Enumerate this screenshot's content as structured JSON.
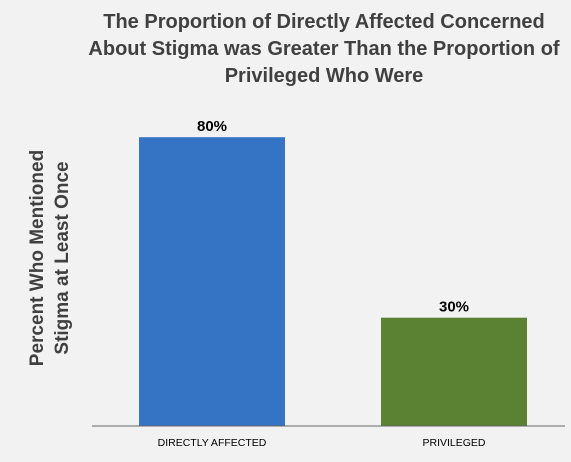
{
  "chart_data": {
    "type": "bar",
    "title_lines": [
      "The Proportion of Directly Affected Concerned",
      "About Stigma was Greater Than the Proportion of",
      "Privileged Who Were"
    ],
    "ylabel_lines": [
      "Percent Who Mentioned",
      "Stigma at Least Once"
    ],
    "xlabel": "",
    "categories": [
      "DIRECTLY AFFECTED",
      "PRIVILEGED"
    ],
    "values": [
      80,
      30
    ],
    "data_labels": [
      "80%",
      "30%"
    ],
    "ylim": [
      0,
      100
    ],
    "grid": false,
    "legend": "none",
    "colors": [
      "#3573c4",
      "#5b8233"
    ],
    "background_color": "#f2f2f2",
    "axis_color": "#666666"
  }
}
